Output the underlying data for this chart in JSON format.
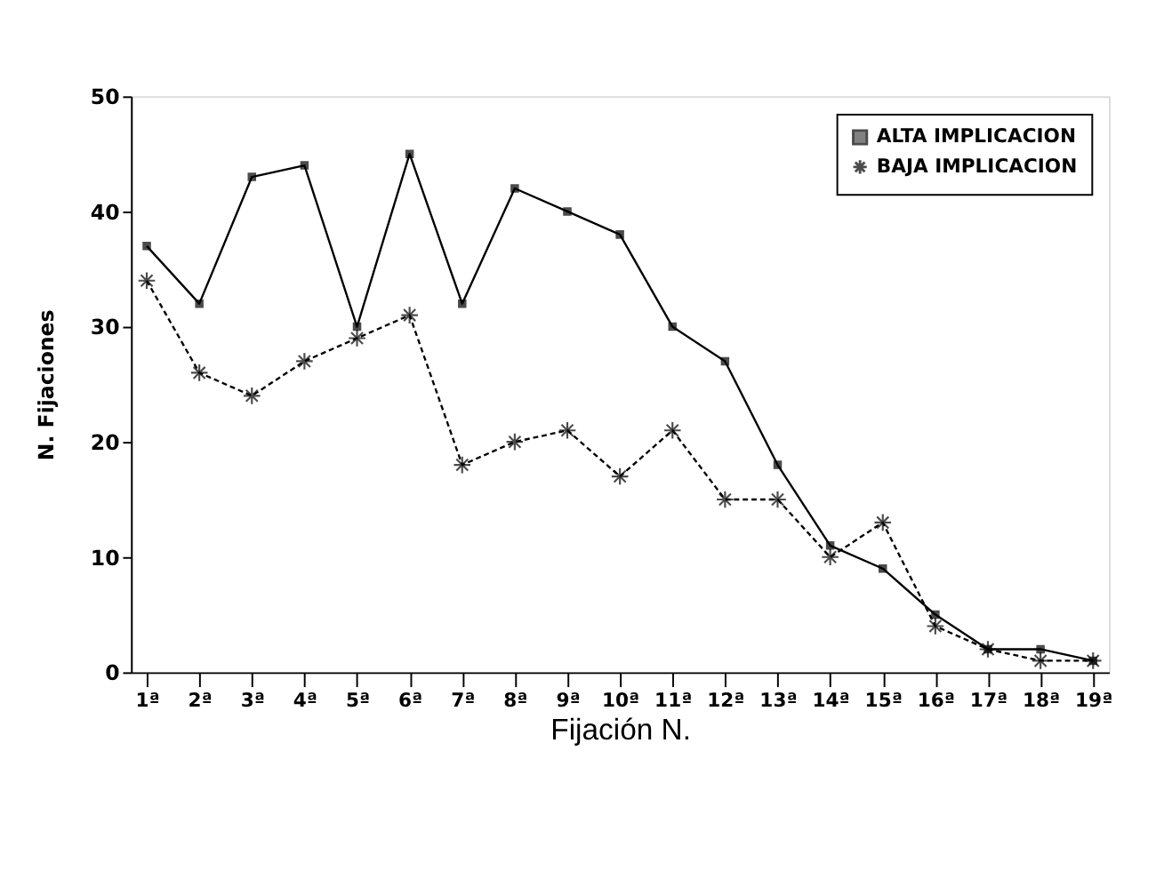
{
  "chart_data": {
    "type": "line",
    "xlabel": "Fijación N.",
    "ylabel": "N. Fijaciones",
    "categories": [
      "1ª",
      "2ª",
      "3ª",
      "4ª",
      "5ª",
      "6ª",
      "7ª",
      "8ª",
      "9ª",
      "10ª",
      "11ª",
      "12ª",
      "13ª",
      "14ª",
      "15ª",
      "16ª",
      "17ª",
      "18ª",
      "19ª"
    ],
    "series": [
      {
        "name": "ALTA IMPLICACION",
        "color": "#000000",
        "marker": "square",
        "line_style": "solid",
        "values": [
          37,
          32,
          43,
          44,
          30,
          45,
          32,
          42,
          40,
          38,
          30,
          27,
          18,
          11,
          9,
          5,
          2,
          2,
          1
        ]
      },
      {
        "name": "BAJA IMPLICACION",
        "color": "#000000",
        "marker": "cross",
        "line_style": "dashed",
        "values": [
          34,
          26,
          24,
          27,
          29,
          31,
          18,
          20,
          21,
          17,
          21,
          15,
          15,
          10,
          13,
          4,
          2,
          1,
          1
        ]
      }
    ],
    "ylim": [
      0,
      50
    ],
    "yticks": [
      0,
      10,
      20,
      30,
      40,
      50
    ],
    "grid": false,
    "legend": "top right"
  }
}
